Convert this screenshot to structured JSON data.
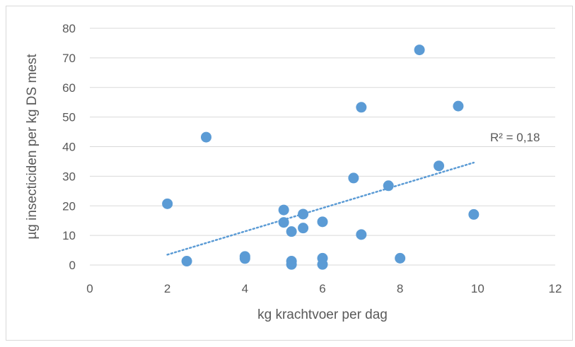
{
  "chart_data": {
    "type": "scatter",
    "xlabel": "kg krachtvoer per dag",
    "ylabel": "µg insecticiden per kg DS mest",
    "xlim": [
      0,
      12
    ],
    "ylim": [
      0,
      80
    ],
    "x_ticks": [
      "0",
      "2",
      "4",
      "6",
      "8",
      "10",
      "12"
    ],
    "y_ticks": [
      "0",
      "10",
      "20",
      "30",
      "40",
      "50",
      "60",
      "70",
      "80"
    ],
    "grid": "horizontal",
    "legend": "none",
    "series": [
      {
        "color": "#5b9bd5",
        "points": [
          {
            "x": 2.0,
            "y": 20.7
          },
          {
            "x": 2.5,
            "y": 1.3
          },
          {
            "x": 3.0,
            "y": 43.2
          },
          {
            "x": 4.0,
            "y": 2.9
          },
          {
            "x": 4.0,
            "y": 2.2
          },
          {
            "x": 5.0,
            "y": 18.6
          },
          {
            "x": 5.0,
            "y": 14.4
          },
          {
            "x": 5.2,
            "y": 11.3
          },
          {
            "x": 5.2,
            "y": 1.3
          },
          {
            "x": 5.2,
            "y": 0.2
          },
          {
            "x": 5.5,
            "y": 17.2
          },
          {
            "x": 5.5,
            "y": 12.5
          },
          {
            "x": 6.0,
            "y": 14.6
          },
          {
            "x": 6.0,
            "y": 2.3
          },
          {
            "x": 6.0,
            "y": 0.2
          },
          {
            "x": 6.8,
            "y": 29.4
          },
          {
            "x": 7.0,
            "y": 53.3
          },
          {
            "x": 7.0,
            "y": 10.3
          },
          {
            "x": 7.7,
            "y": 26.8
          },
          {
            "x": 8.0,
            "y": 2.3
          },
          {
            "x": 8.5,
            "y": 72.7
          },
          {
            "x": 9.0,
            "y": 33.5
          },
          {
            "x": 9.5,
            "y": 53.7
          },
          {
            "x": 9.9,
            "y": 17.1
          }
        ]
      }
    ],
    "trendline": {
      "type": "linear",
      "style": "dotted",
      "color": "#5b9bd5",
      "x_start": 2.0,
      "y_start": 3.5,
      "x_end": 9.9,
      "y_end": 34.6,
      "label": "R² = 0,18"
    }
  }
}
